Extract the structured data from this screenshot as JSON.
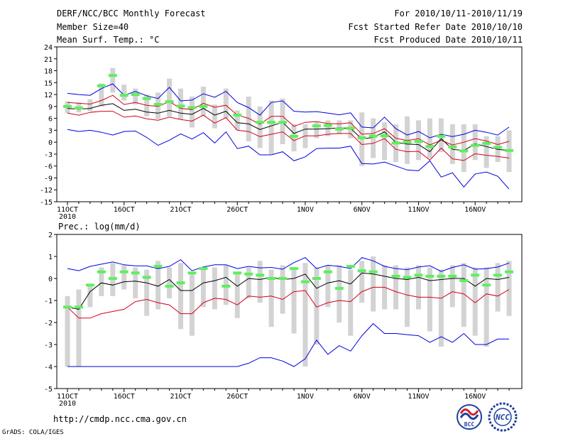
{
  "header": {
    "title": "DERF/NCC/BCC Monthly Forecast",
    "member_size": "Member Size=40",
    "variable": "Mean Surf. Temp.: °C",
    "period": "For 2010/10/11-2010/11/19",
    "started": "Fcst Started Refer Date 2010/10/10",
    "produced": "Fcst Produced Date 2010/10/11"
  },
  "footer": {
    "url": "http://cmdp.ncc.cma.gov.cn",
    "grads": "GrADS: COLA/IGES",
    "logo_bcc": "BCC",
    "logo_ncc": "NCC"
  },
  "colors": {
    "box": "#d3d3d3",
    "marker": "#5cf05c",
    "mean": "#000000",
    "red": "#d4001a",
    "blue": "#0000e0"
  },
  "chart_data": [
    {
      "type": "line",
      "title": "Mean Surf. Temp.: °C",
      "ylim": [
        -15,
        24
      ],
      "yticks": [
        24,
        21,
        18,
        15,
        12,
        9,
        6,
        3,
        0,
        -3,
        -6,
        -9,
        -12,
        -15
      ],
      "xtick_labels": [
        "11OCT",
        "16OCT",
        "21OCT",
        "26OCT",
        "1NOV",
        "6NOV",
        "11NOV",
        "16NOV"
      ],
      "xtick_index": [
        0,
        5,
        10,
        15,
        21,
        26,
        31,
        36
      ],
      "year_label": "2010",
      "days": 40,
      "series": [
        {
          "name": "upper",
          "values": [
            12.3,
            12.0,
            11.8,
            13.5,
            14.7,
            11.8,
            12.8,
            11.7,
            11.0,
            13.8,
            10.4,
            10.6,
            12.2,
            11.3,
            12.8,
            10.0,
            8.7,
            6.8,
            10.0,
            10.4,
            7.8,
            7.6,
            7.7,
            7.3,
            6.9,
            7.4,
            3.8,
            3.6,
            6.3,
            3.4,
            1.8,
            2.7,
            1.1,
            2.0,
            1.4,
            2.0,
            3.0,
            2.5,
            1.8,
            3.8
          ]
        },
        {
          "name": "red_upper",
          "values": [
            10.0,
            9.8,
            9.6,
            10.5,
            11.8,
            9.5,
            10.0,
            9.3,
            9.0,
            10.2,
            8.5,
            8.2,
            9.8,
            8.8,
            9.3,
            6.8,
            6.0,
            4.5,
            6.5,
            6.5,
            4.0,
            5.0,
            5.2,
            4.7,
            4.6,
            4.9,
            2.0,
            2.2,
            3.4,
            1.0,
            0.4,
            0.9,
            -0.7,
            0.5,
            -0.7,
            0.0,
            0.9,
            0.3,
            -0.6,
            0.2
          ]
        },
        {
          "name": "mean",
          "values": [
            8.5,
            8.3,
            8.5,
            9.3,
            9.7,
            8.0,
            8.3,
            7.6,
            7.3,
            8.0,
            7.3,
            7.0,
            8.5,
            6.8,
            7.8,
            4.9,
            4.6,
            3.2,
            4.1,
            5.0,
            2.2,
            3.3,
            3.3,
            3.4,
            3.6,
            3.5,
            0.8,
            1.2,
            2.6,
            0.0,
            -0.5,
            -0.6,
            -2.4,
            0.9,
            -1.8,
            -2.1,
            -0.4,
            -1.1,
            -1.8,
            -2.1
          ]
        },
        {
          "name": "red_lower",
          "values": [
            7.3,
            6.8,
            7.5,
            7.8,
            7.8,
            6.3,
            6.6,
            5.9,
            5.5,
            6.3,
            5.7,
            5.3,
            6.8,
            4.8,
            6.2,
            3.0,
            2.7,
            1.4,
            2.0,
            2.6,
            0.4,
            1.6,
            1.6,
            2.0,
            2.2,
            2.2,
            -0.6,
            -0.3,
            0.9,
            -1.8,
            -2.4,
            -2.3,
            -4.5,
            -1.5,
            -4.2,
            -4.6,
            -2.9,
            -3.3,
            -3.6,
            -4.0
          ]
        },
        {
          "name": "lower",
          "values": [
            3.2,
            2.7,
            3.0,
            2.5,
            1.8,
            2.7,
            2.8,
            1.2,
            -0.8,
            0.5,
            2.1,
            0.8,
            2.4,
            -0.2,
            2.6,
            -1.6,
            -1.0,
            -3.2,
            -3.2,
            -2.4,
            -4.7,
            -3.7,
            -1.6,
            -1.5,
            -1.5,
            -1.0,
            -5.4,
            -5.5,
            -5.0,
            -6.0,
            -7.0,
            -7.2,
            -4.7,
            -8.8,
            -7.7,
            -11.3,
            -8.0,
            -7.5,
            -8.6,
            -11.8
          ]
        }
      ],
      "boxes": [
        [
          7.3,
          10.3
        ],
        [
          7.5,
          10.0
        ],
        [
          7.8,
          10.8
        ],
        [
          9.0,
          14.8
        ],
        [
          12.5,
          18.7
        ],
        [
          10.5,
          14.5
        ],
        [
          9.5,
          13.5
        ],
        [
          6.5,
          12.0
        ],
        [
          5.8,
          12.5
        ],
        [
          6.5,
          16.0
        ],
        [
          5.8,
          13.5
        ],
        [
          3.7,
          11.5
        ],
        [
          6.5,
          14.0
        ],
        [
          3.5,
          9.5
        ],
        [
          6.0,
          13.5
        ],
        [
          3.0,
          8.0
        ],
        [
          0.2,
          11.5
        ],
        [
          -1.5,
          9.0
        ],
        [
          -3.0,
          10.5
        ],
        [
          -0.5,
          11.0
        ],
        [
          -2.3,
          4.5
        ],
        [
          -1.5,
          4.5
        ],
        [
          1.0,
          5.0
        ],
        [
          1.5,
          5.5
        ],
        [
          2.0,
          5.5
        ],
        [
          1.0,
          5.5
        ],
        [
          -6.0,
          7.5
        ],
        [
          -4.0,
          6.0
        ],
        [
          -4.5,
          5.0
        ],
        [
          -5.0,
          4.5
        ],
        [
          -5.5,
          6.5
        ],
        [
          -4.5,
          5.5
        ],
        [
          -4.0,
          6.0
        ],
        [
          -2.5,
          6.0
        ],
        [
          -5.5,
          4.5
        ],
        [
          -7.5,
          4.5
        ],
        [
          -4.5,
          4.5
        ],
        [
          -6.5,
          1.5
        ],
        [
          -5.0,
          1.5
        ],
        [
          -7.5,
          3.0
        ]
      ],
      "markers": [
        9.0,
        8.6,
        null,
        14.2,
        16.8,
        11.8,
        12.0,
        11.0,
        9.5,
        10.2,
        9.1,
        8.7,
        9.0,
        null,
        null,
        6.8,
        null,
        5.0,
        5.0,
        5.0,
        1.5,
        null,
        4.1,
        4.2,
        3.3,
        3.5,
        1.1,
        1.5,
        1.6,
        -0.2,
        0.0,
        0.2,
        -1.1,
        1.5,
        -1.2,
        -2.2,
        -0.8,
        -0.3,
        -1.3,
        -2.1
      ]
    },
    {
      "type": "line",
      "title": "Prec.: log(mm/d)",
      "ylim": [
        -5,
        2
      ],
      "yticks": [
        2,
        1,
        0,
        -1,
        -2,
        -3,
        -4,
        -5
      ],
      "xtick_labels": [
        "11OCT",
        "16OCT",
        "21OCT",
        "26OCT",
        "1NOV",
        "6NOV",
        "11NOV",
        "16NOV"
      ],
      "xtick_index": [
        0,
        5,
        10,
        15,
        21,
        26,
        31,
        36
      ],
      "year_label": "2010",
      "days": 40,
      "series": [
        {
          "name": "upper",
          "values": [
            0.45,
            0.35,
            0.55,
            0.65,
            0.75,
            0.62,
            0.57,
            0.57,
            0.45,
            0.55,
            0.85,
            0.35,
            0.52,
            0.62,
            0.62,
            0.45,
            0.55,
            0.48,
            0.5,
            0.42,
            0.72,
            0.95,
            0.45,
            0.6,
            0.55,
            0.45,
            0.95,
            0.8,
            0.55,
            0.45,
            0.4,
            0.52,
            0.58,
            0.32,
            0.5,
            0.62,
            0.42,
            0.45,
            0.52,
            0.7
          ]
        },
        {
          "name": "mean",
          "values": [
            -1.3,
            -1.4,
            -0.6,
            -0.2,
            -0.3,
            -0.15,
            -0.12,
            -0.2,
            -0.35,
            -0.05,
            -0.55,
            -0.55,
            -0.2,
            -0.1,
            0.05,
            -0.35,
            0.0,
            -0.05,
            0.05,
            -0.05,
            0.0,
            0.2,
            -0.45,
            -0.2,
            -0.1,
            -0.25,
            0.25,
            0.2,
            0.1,
            0.0,
            -0.05,
            0.05,
            -0.1,
            -0.05,
            0.0,
            0.0,
            -0.35,
            0.0,
            -0.05,
            0.05
          ]
        },
        {
          "name": "red",
          "values": [
            -1.3,
            -1.8,
            -1.8,
            -1.6,
            -1.5,
            -1.4,
            -1.05,
            -0.95,
            -1.1,
            -1.2,
            -1.6,
            -1.6,
            -1.1,
            -0.9,
            -0.95,
            -1.2,
            -0.8,
            -0.85,
            -0.8,
            -0.95,
            -0.6,
            -0.55,
            -1.3,
            -1.1,
            -1.0,
            -1.05,
            -0.6,
            -0.4,
            -0.4,
            -0.6,
            -0.75,
            -0.85,
            -0.85,
            -0.9,
            -0.6,
            -0.7,
            -1.1,
            -0.7,
            -0.8,
            -0.5
          ]
        },
        {
          "name": "lower",
          "values": [
            -4.0,
            -4.0,
            -4.0,
            -4.0,
            -4.0,
            -4.0,
            -4.0,
            -4.0,
            -4.0,
            -4.0,
            -4.0,
            -4.0,
            -4.0,
            -4.0,
            -4.0,
            -4.0,
            -3.85,
            -3.6,
            -3.6,
            -3.75,
            -4.0,
            -3.65,
            -2.8,
            -3.45,
            -3.05,
            -3.3,
            -2.6,
            -2.05,
            -2.5,
            -2.5,
            -2.55,
            -2.6,
            -2.9,
            -2.65,
            -2.9,
            -2.5,
            -3.0,
            -3.0,
            -2.75,
            -2.75
          ]
        }
      ],
      "boxes": [
        [
          -4.0,
          -0.8
        ],
        [
          -4.0,
          -0.5
        ],
        [
          -1.3,
          -0.3
        ],
        [
          -0.8,
          0.5
        ],
        [
          -0.8,
          0.7
        ],
        [
          -0.5,
          0.6
        ],
        [
          -0.9,
          0.5
        ],
        [
          -1.7,
          0.4
        ],
        [
          -1.4,
          0.8
        ],
        [
          -0.9,
          0.5
        ],
        [
          -2.3,
          0.7
        ],
        [
          -2.6,
          0.3
        ],
        [
          -1.3,
          0.4
        ],
        [
          -1.4,
          0.5
        ],
        [
          -1.2,
          0.6
        ],
        [
          -1.8,
          0.2
        ],
        [
          -0.9,
          0.5
        ],
        [
          -1.1,
          0.8
        ],
        [
          -2.2,
          0.4
        ],
        [
          -1.6,
          0.6
        ],
        [
          -2.5,
          0.5
        ],
        [
          -4.0,
          0.7
        ],
        [
          -3.0,
          0.5
        ],
        [
          -1.3,
          0.6
        ],
        [
          -2.0,
          0.6
        ],
        [
          -2.6,
          0.4
        ],
        [
          -1.1,
          0.8
        ],
        [
          -1.5,
          1.0
        ],
        [
          -1.4,
          0.6
        ],
        [
          -1.4,
          0.6
        ],
        [
          -2.2,
          0.5
        ],
        [
          -1.4,
          0.6
        ],
        [
          -2.4,
          0.5
        ],
        [
          -3.1,
          0.4
        ],
        [
          -1.3,
          0.6
        ],
        [
          -2.2,
          0.7
        ],
        [
          -2.6,
          0.5
        ],
        [
          -3.1,
          0.5
        ],
        [
          -1.5,
          0.7
        ],
        [
          -1.7,
          0.8
        ]
      ],
      "markers": [
        -1.3,
        -1.3,
        -0.3,
        0.3,
        0.0,
        0.3,
        0.25,
        0.05,
        0.55,
        -0.35,
        -0.2,
        0.25,
        0.45,
        null,
        -0.35,
        0.25,
        0.2,
        0.15,
        0.0,
        0.0,
        0.45,
        -0.15,
        0.0,
        0.3,
        -0.45,
        0.55,
        0.35,
        0.3,
        null,
        0.1,
        0.05,
        0.15,
        0.1,
        0.1,
        0.1,
        -0.1,
        0.15,
        -0.3,
        0.15,
        0.3
      ]
    }
  ]
}
